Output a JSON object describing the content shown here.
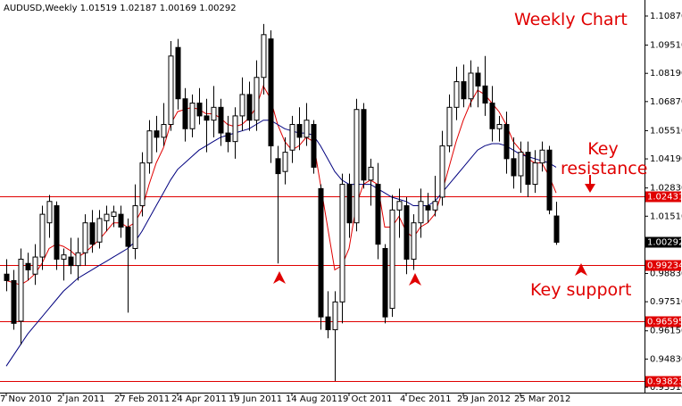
{
  "chart_data": {
    "type": "candlestick",
    "title": "AUDUSD,Weekly  1.01519 1.02187 1.00169 1.00292",
    "annotations": [
      "Weekly Chart",
      "Key resistance",
      "Key support"
    ],
    "categories": [
      "7 Nov 2010",
      null,
      null,
      null,
      null,
      null,
      null,
      null,
      "2 Jan 2011",
      null,
      null,
      null,
      null,
      null,
      null,
      null,
      "27 Feb 2011",
      null,
      null,
      null,
      null,
      null,
      null,
      null,
      "24 Apr 2011",
      null,
      null,
      null,
      null,
      null,
      null,
      null,
      "19 Jun 2011",
      null,
      null,
      null,
      null,
      null,
      null,
      null,
      "14 Aug 2011",
      null,
      null,
      null,
      null,
      null,
      null,
      null,
      "9 Oct 2011",
      null,
      null,
      null,
      null,
      null,
      null,
      null,
      "4 Dec 2011",
      null,
      null,
      null,
      null,
      null,
      null,
      null,
      "29 Jan 2012",
      null,
      null,
      null,
      null,
      null,
      null,
      null,
      "25 Mar 2012",
      null,
      null,
      null,
      null,
      null
    ],
    "open": [
      0.988,
      0.985,
      0.966,
      0.993,
      0.988,
      0.996,
      1.012,
      1.02,
      0.995,
      0.996,
      0.992,
      0.998,
      1.012,
      1.003,
      1.013,
      1.015,
      1.016,
      1.01,
      1.0,
      1.02,
      1.04,
      1.055,
      1.052,
      1.058,
      1.094,
      1.07,
      1.056,
      1.068,
      1.062,
      1.06,
      1.066,
      1.054,
      1.05,
      1.062,
      1.072,
      1.06,
      1.08,
      1.098,
      1.042,
      1.036,
      1.046,
      1.058,
      1.052,
      1.058,
      1.028,
      0.968,
      0.962,
      0.975,
      1.03,
      1.012,
      1.065,
      1.032,
      1.03,
      1.0,
      0.972,
      1.018,
      1.02,
      0.995,
      1.012,
      1.02,
      1.018,
      1.024,
      1.048,
      1.066,
      1.078,
      1.07,
      1.082,
      1.076,
      1.068,
      1.056,
      1.058,
      1.042,
      1.034,
      1.045,
      1.03,
      1.04,
      1.046,
      1.01519
    ],
    "high": [
      0.995,
      0.99,
      1.0,
      0.998,
      1.002,
      1.02,
      1.025,
      1.022,
      1.0,
      1.005,
      1.005,
      1.016,
      1.018,
      1.018,
      1.02,
      1.02,
      1.02,
      1.014,
      1.03,
      1.045,
      1.06,
      1.062,
      1.068,
      1.097,
      1.098,
      1.075,
      1.072,
      1.075,
      1.07,
      1.076,
      1.07,
      1.062,
      1.066,
      1.08,
      1.078,
      1.088,
      1.105,
      1.102,
      1.048,
      1.052,
      1.062,
      1.066,
      1.068,
      1.06,
      1.03,
      0.98,
      0.98,
      1.035,
      1.035,
      1.07,
      1.068,
      1.042,
      1.04,
      1.002,
      1.025,
      1.028,
      1.024,
      1.016,
      1.028,
      1.026,
      1.034,
      1.055,
      1.072,
      1.085,
      1.086,
      1.088,
      1.085,
      1.09,
      1.076,
      1.062,
      1.064,
      1.052,
      1.05,
      1.05,
      1.046,
      1.05,
      1.048,
      1.02187
    ],
    "low": [
      0.98,
      0.962,
      0.955,
      0.985,
      0.983,
      0.99,
      1.005,
      0.99,
      0.985,
      0.988,
      0.985,
      0.992,
      0.998,
      1.0,
      1.008,
      1.01,
      1.005,
      0.97,
      0.995,
      1.015,
      1.035,
      1.045,
      1.048,
      1.055,
      1.065,
      1.05,
      1.052,
      1.058,
      1.045,
      1.052,
      1.048,
      1.045,
      1.042,
      1.055,
      1.055,
      1.055,
      1.072,
      1.04,
      0.993,
      1.03,
      1.04,
      1.046,
      1.048,
      1.035,
      0.962,
      0.958,
      0.938,
      0.965,
      1.005,
      1.008,
      1.028,
      1.02,
      0.995,
      0.965,
      0.968,
      1.005,
      0.988,
      0.99,
      1.005,
      1.012,
      1.015,
      1.02,
      1.045,
      1.06,
      1.066,
      1.066,
      1.066,
      1.062,
      1.05,
      1.05,
      1.035,
      1.028,
      1.026,
      1.024,
      1.026,
      1.036,
      1.016,
      1.00169
    ],
    "close": [
      0.985,
      0.965,
      0.995,
      0.99,
      0.996,
      1.016,
      1.022,
      0.995,
      0.997,
      0.992,
      0.998,
      1.012,
      1.002,
      1.014,
      1.016,
      1.017,
      1.01,
      1.001,
      1.02,
      1.04,
      1.055,
      1.052,
      1.058,
      1.09,
      1.07,
      1.056,
      1.068,
      1.062,
      1.06,
      1.066,
      1.054,
      1.05,
      1.062,
      1.072,
      1.06,
      1.08,
      1.1,
      1.048,
      1.035,
      1.045,
      1.058,
      1.052,
      1.06,
      1.038,
      0.968,
      0.962,
      0.975,
      1.03,
      1.012,
      1.065,
      1.032,
      1.038,
      1.002,
      0.968,
      1.018,
      1.022,
      0.995,
      1.012,
      1.022,
      1.018,
      1.022,
      1.048,
      1.066,
      1.078,
      1.07,
      1.082,
      1.076,
      1.068,
      1.056,
      1.058,
      1.042,
      1.034,
      1.045,
      1.03,
      1.04,
      1.046,
      1.018,
      1.00292
    ],
    "series": [
      {
        "color": "#e00000",
        "values": [
          0.985,
          0.984,
          0.983,
          0.985,
          0.988,
          0.993,
          1.0,
          1.002,
          1.001,
          0.999,
          0.996,
          0.998,
          1.001,
          1.004,
          1.008,
          1.012,
          1.012,
          1.01,
          1.012,
          1.018,
          1.03,
          1.04,
          1.047,
          1.058,
          1.064,
          1.065,
          1.066,
          1.065,
          1.063,
          1.063,
          1.061,
          1.058,
          1.057,
          1.058,
          1.061,
          1.066,
          1.076,
          1.07,
          1.058,
          1.05,
          1.046,
          1.048,
          1.052,
          1.05,
          1.03,
          1.01,
          0.99,
          0.992,
          1.0,
          1.02,
          1.03,
          1.032,
          1.03,
          1.01,
          1.01,
          1.015,
          1.008,
          1.005,
          1.01,
          1.012,
          1.016,
          1.026,
          1.038,
          1.05,
          1.06,
          1.068,
          1.074,
          1.072,
          1.068,
          1.064,
          1.058,
          1.05,
          1.046,
          1.042,
          1.04,
          1.04,
          1.034,
          1.026
        ]
      },
      {
        "color": "#00007f",
        "values": [
          0.945,
          0.95,
          0.955,
          0.96,
          0.964,
          0.968,
          0.972,
          0.976,
          0.98,
          0.983,
          0.986,
          0.988,
          0.99,
          0.992,
          0.994,
          0.996,
          0.998,
          1.0,
          1.003,
          1.008,
          1.014,
          1.02,
          1.026,
          1.032,
          1.037,
          1.04,
          1.043,
          1.046,
          1.048,
          1.05,
          1.052,
          1.053,
          1.054,
          1.055,
          1.056,
          1.058,
          1.06,
          1.06,
          1.058,
          1.056,
          1.055,
          1.054,
          1.054,
          1.053,
          1.048,
          1.042,
          1.036,
          1.032,
          1.03,
          1.03,
          1.03,
          1.03,
          1.028,
          1.026,
          1.024,
          1.023,
          1.022,
          1.02,
          1.02,
          1.02,
          1.022,
          1.026,
          1.03,
          1.034,
          1.038,
          1.042,
          1.046,
          1.048,
          1.049,
          1.049,
          1.048,
          1.046,
          1.044,
          1.043,
          1.042,
          1.041,
          1.04,
          1.038
        ]
      }
    ],
    "levels": [
      {
        "value": 1.02431,
        "color": "#e00000"
      },
      {
        "value": 0.99234,
        "color": "#e00000"
      },
      {
        "value": 0.96595,
        "color": "#e00000"
      },
      {
        "value": 0.93823,
        "color": "#e00000"
      }
    ],
    "current_price": 1.00292,
    "ylim": [
      0.9326,
      1.1162
    ],
    "yticks": [
      {
        "value": 1.1087,
        "label": "1.10870"
      },
      {
        "value": 1.0951,
        "label": "1.09510"
      },
      {
        "value": 1.0819,
        "label": "1.08190"
      },
      {
        "value": 1.0687,
        "label": "1.06870"
      },
      {
        "value": 1.0551,
        "label": "1.05510"
      },
      {
        "value": 1.0419,
        "label": "1.04190"
      },
      {
        "value": 1.0283,
        "label": "1.02830"
      },
      {
        "value": 1.0151,
        "label": "1.01510"
      },
      {
        "value": 0.9883,
        "label": "0.98830"
      },
      {
        "value": 0.9751,
        "label": "0.97510"
      },
      {
        "value": 0.9615,
        "label": "0.96150"
      },
      {
        "value": 0.9483,
        "label": "0.94830"
      },
      {
        "value": 0.9351,
        "label": "0.93510"
      }
    ],
    "y_axis_side": "right",
    "grid": false
  }
}
